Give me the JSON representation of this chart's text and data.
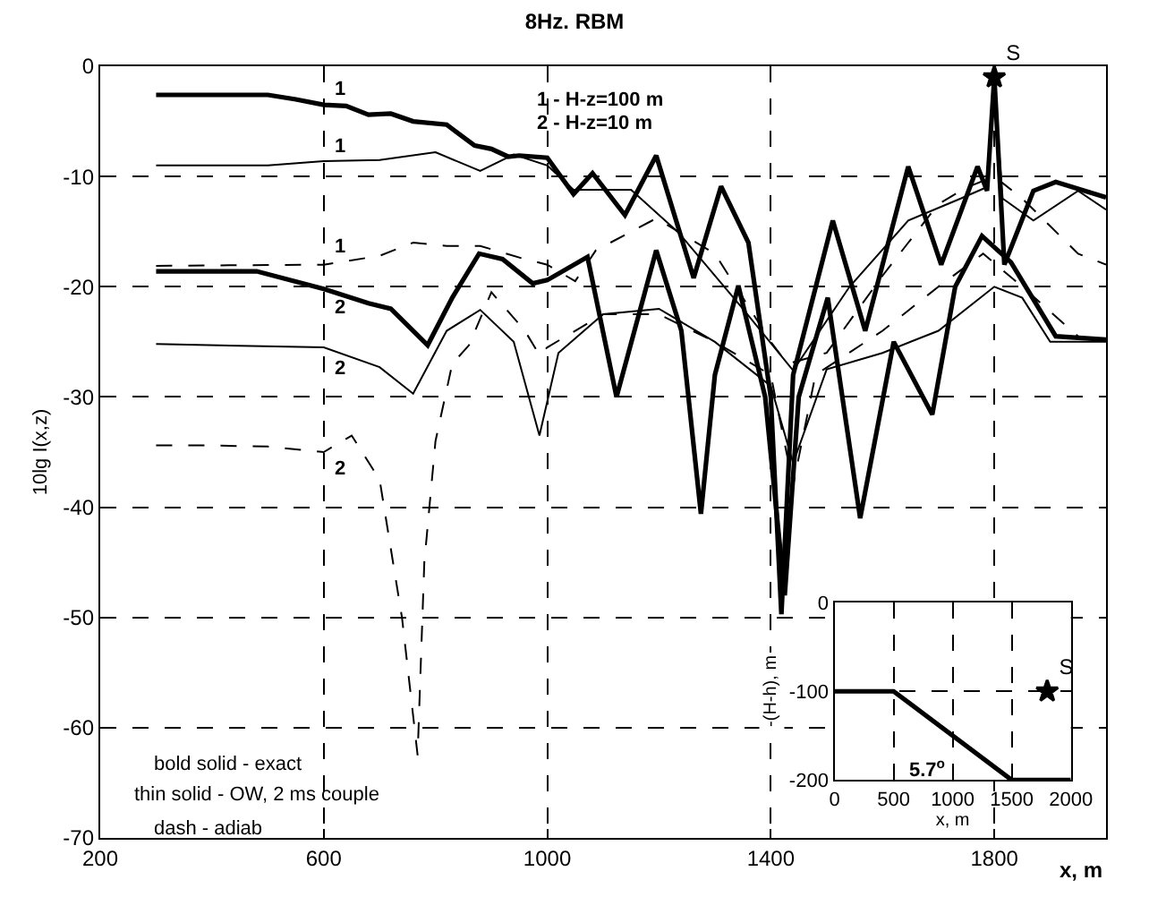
{
  "chart_data": [
    {
      "type": "line",
      "title": "8Hz. RBM",
      "xlabel": "x, m",
      "ylabel": "10lg I(x,z)",
      "xlim": [
        200,
        2000
      ],
      "xticks": [
        200,
        600,
        1000,
        1400,
        1800
      ],
      "ylim": [
        -70,
        0
      ],
      "yticks": [
        -70,
        -60,
        -50,
        -40,
        -30,
        -20,
        -10,
        0
      ],
      "grid": true,
      "marker": "none",
      "series": [
        {
          "color": "#000000",
          "line_style": "solid",
          "x": [
            300,
            500,
            550,
            600,
            640,
            680,
            720,
            760,
            820,
            870,
            900,
            930,
            950,
            1000,
            1047,
            1081,
            1139,
            1195,
            1262,
            1311,
            1360,
            1400,
            1419,
            1440,
            1511,
            1569,
            1646,
            1705,
            1770,
            1787,
            1800,
            1818,
            1870,
            1910,
            2000
          ],
          "values": [
            -2.6,
            -2.6,
            -3.0,
            -3.5,
            -3.6,
            -4.4,
            -4.3,
            -5.0,
            -5.3,
            -7.2,
            -7.5,
            -8.2,
            -8.1,
            -8.3,
            -11.6,
            -9.7,
            -13.5,
            -8.1,
            -19.2,
            -10.9,
            -16,
            -30,
            -49.7,
            -28,
            -14,
            -24,
            -9.1,
            -18,
            -9.1,
            -11.3,
            -1,
            -18,
            -11.3,
            -10.5,
            -11.9
          ]
        },
        {
          "color": "#000000",
          "line_style": "solid",
          "x": [
            300,
            480,
            600,
            680,
            720,
            786,
            830,
            878,
            920,
            974,
            1000,
            1072,
            1124,
            1195,
            1240,
            1275,
            1300,
            1342,
            1390,
            1425,
            1450,
            1502,
            1560,
            1620,
            1689,
            1730,
            1778,
            1830,
            1910,
            2000
          ],
          "values": [
            -18.6,
            -18.6,
            -20.2,
            -21.5,
            -22.0,
            -25.3,
            -21,
            -17.0,
            -17.5,
            -19.7,
            -19.4,
            -17.3,
            -30,
            -16.7,
            -24,
            -40.6,
            -28,
            -19.9,
            -30,
            -48,
            -30,
            -21,
            -41,
            -25,
            -31.6,
            -20,
            -15.4,
            -17.8,
            -24.5,
            -24.8
          ]
        },
        {
          "color": "#000000",
          "line_style": "solid",
          "x": [
            300,
            500,
            600,
            700,
            800,
            880,
            940,
            1000,
            1047,
            1150,
            1235,
            1350,
            1440,
            1541,
            1646,
            1740,
            1785,
            1800,
            1815,
            1870,
            1950,
            2000
          ],
          "values": [
            -9.0,
            -9.0,
            -8.6,
            -8.5,
            -7.8,
            -9.5,
            -8.0,
            -9.0,
            -11.2,
            -11.2,
            -15.1,
            -22,
            -27.6,
            -20,
            -14,
            -12,
            -11,
            -2,
            -12,
            -14,
            -11.3,
            -13
          ]
        },
        {
          "color": "#000000",
          "line_style": "solid",
          "x": [
            300,
            600,
            700,
            760,
            820,
            880,
            940,
            986,
            1020,
            1100,
            1200,
            1300,
            1400,
            1440,
            1500,
            1600,
            1700,
            1800,
            1850,
            1900,
            2000
          ],
          "values": [
            -25.2,
            -25.5,
            -27.3,
            -29.7,
            -24,
            -22.1,
            -25,
            -33.5,
            -26,
            -22.5,
            -22,
            -25,
            -29,
            -36,
            -27.5,
            -26,
            -24,
            -20,
            -21,
            -25,
            -25
          ]
        },
        {
          "color": "#000000",
          "line_style": "dashed",
          "x": [
            300,
            600,
            700,
            760,
            820,
            880,
            960,
            1000,
            1050,
            1087,
            1195,
            1300,
            1400,
            1430,
            1500,
            1600,
            1700,
            1750,
            1800,
            1850,
            1950,
            2000
          ],
          "values": [
            -18.1,
            -18.0,
            -17.2,
            -16.0,
            -16.3,
            -16.3,
            -17.5,
            -18.0,
            -19.5,
            -16.7,
            -13.8,
            -17,
            -25,
            -27,
            -26,
            -19,
            -12.5,
            -11,
            -10,
            -12,
            -17,
            -18
          ]
        },
        {
          "color": "#000000",
          "line_style": "dashed",
          "x": [
            300,
            400,
            500,
            600,
            650,
            700,
            740,
            768,
            780,
            800,
            830,
            860,
            900,
            960,
            986,
            1000,
            1100,
            1200,
            1300,
            1400,
            1440,
            1480,
            1600,
            1700,
            1780,
            1850,
            1950,
            2000
          ],
          "values": [
            -34.4,
            -34.4,
            -34.5,
            -35.0,
            -33.5,
            -37.5,
            -50,
            -62.5,
            -45,
            -34,
            -27,
            -25.3,
            -20.5,
            -24,
            -26.2,
            -25.5,
            -22.5,
            -22.5,
            -25,
            -28,
            -38,
            -28,
            -24,
            -20,
            -17,
            -20,
            -24.5,
            -25
          ]
        },
        {
          "type": "scatter",
          "name": "S",
          "marker": "star",
          "color": "#000000",
          "x": [
            1800
          ],
          "values": [
            -1
          ]
        }
      ],
      "annotations": [
        "1",
        "1",
        "1",
        "2",
        "2",
        "2",
        "1 - H-z=100 m",
        "2 - H-z=10 m",
        "bold solid - exact",
        "thin solid - OW, 2 ms couple",
        "dash - adiab"
      ]
    },
    {
      "type": "line",
      "xlabel": "x, m",
      "ylabel": "-(H-h), m",
      "xlim": [
        0,
        2000
      ],
      "xticks": [
        0,
        500,
        1000,
        1500,
        2000
      ],
      "ylim": [
        -200,
        0
      ],
      "yticks": [
        -200,
        -100,
        0
      ],
      "grid": true,
      "marker": "none",
      "series": [
        {
          "color": "#000000",
          "line_style": "solid",
          "x": [
            0,
            500,
            1500,
            2000
          ],
          "values": [
            -100,
            -100,
            -200,
            -200
          ]
        },
        {
          "type": "scatter",
          "name": "S",
          "marker": "star",
          "color": "#000000",
          "x": [
            1800
          ],
          "values": [
            -100
          ]
        }
      ],
      "annotations": [
        "5.7$^{o}$"
      ]
    }
  ]
}
